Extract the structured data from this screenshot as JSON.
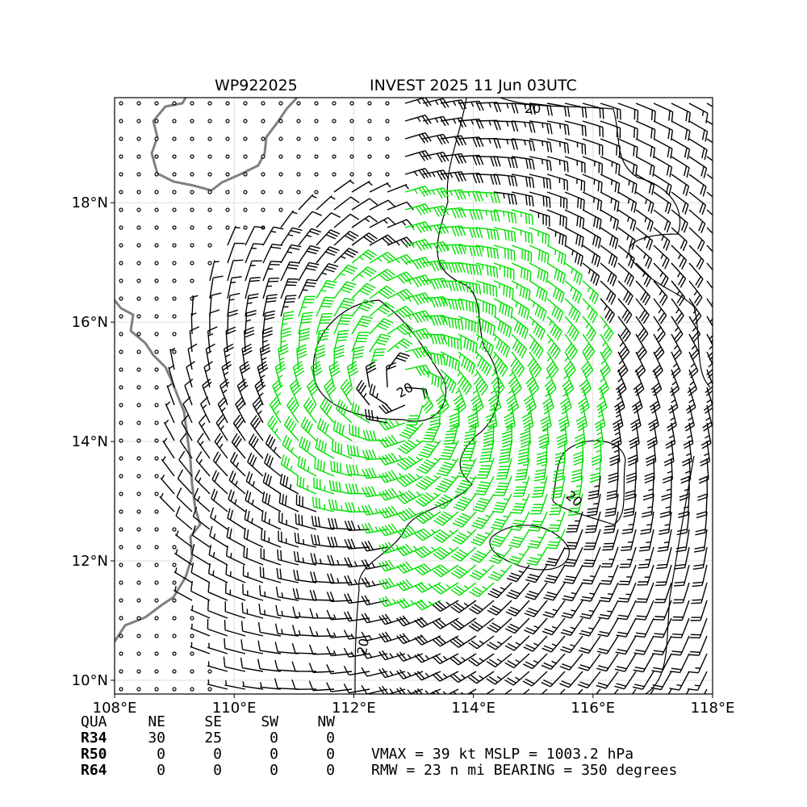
{
  "header": {
    "storm_id": "WP922025",
    "title": "INVEST 2025 11 Jun 03UTC"
  },
  "map": {
    "lon_range": [
      108,
      118
    ],
    "lat_range": [
      9.77,
      19.76
    ],
    "lon_ticks": [
      {
        "value": 108,
        "label": "108°E"
      },
      {
        "value": 110,
        "label": "110°E"
      },
      {
        "value": 112,
        "label": "112°E"
      },
      {
        "value": 114,
        "label": "114°E"
      },
      {
        "value": 116,
        "label": "116°E"
      },
      {
        "value": 118,
        "label": "118°E"
      }
    ],
    "lat_ticks": [
      {
        "value": 10,
        "label": "10°N"
      },
      {
        "value": 12,
        "label": "12°N"
      },
      {
        "value": 14,
        "label": "14°N"
      },
      {
        "value": 16,
        "label": "16°N"
      },
      {
        "value": 18,
        "label": "18°N"
      }
    ],
    "contour_label": "20",
    "grid": true
  },
  "table": {
    "header": [
      "QUA",
      "NE",
      "SE",
      "SW",
      "NW"
    ],
    "rows": [
      [
        "R34",
        "30",
        "25",
        "0",
        "0"
      ],
      [
        "R50",
        "0",
        "0",
        "0",
        "0"
      ],
      [
        "R64",
        "0",
        "0",
        "0",
        "0"
      ]
    ]
  },
  "info": [
    "VMAX =  39 kt MSLP = 1003.2 hPa",
    "RMW =  23 n mi BEARING = 350 degrees"
  ]
}
